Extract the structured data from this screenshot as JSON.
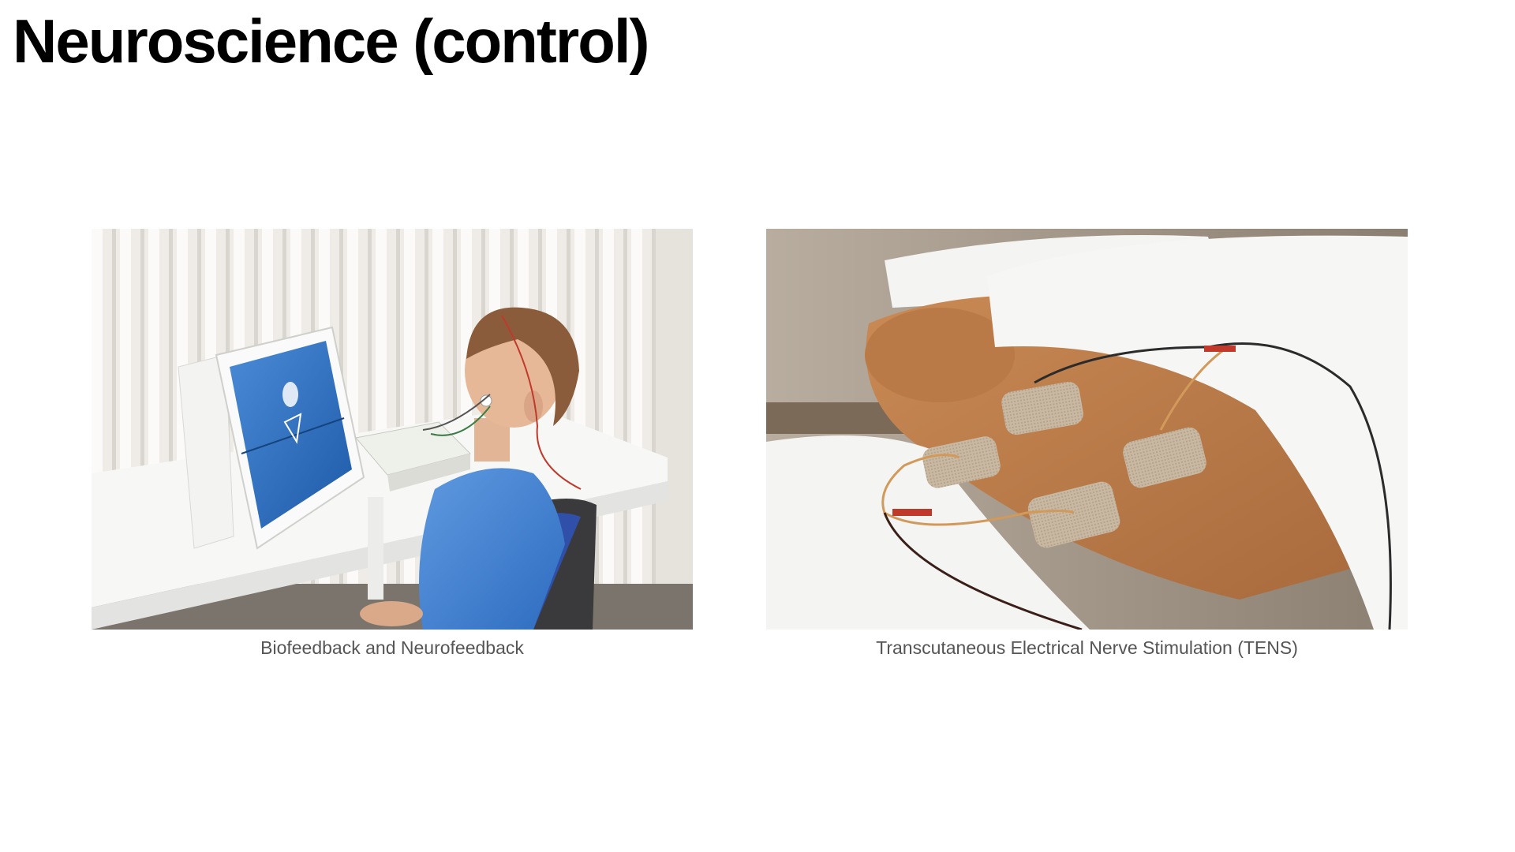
{
  "slide": {
    "title": "Neuroscience (control)"
  },
  "figures": [
    {
      "caption": "Biofeedback and Neurofeedback",
      "image": "photo of a boy wearing EEG electrodes watching a game on a monitor"
    },
    {
      "caption": "Transcutaneous Electrical Nerve Stimulation (TENS)",
      "image": "photo of TENS electrode pads on a patient's lower back"
    }
  ],
  "colors": {
    "background": "#ffffff",
    "title": "#000000",
    "caption": "#555555"
  }
}
